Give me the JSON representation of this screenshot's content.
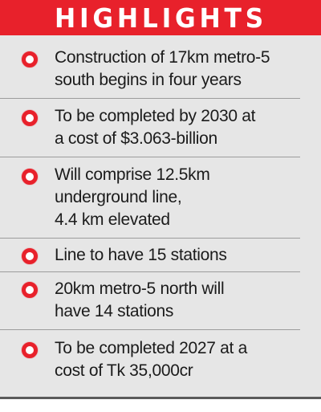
{
  "header": {
    "title": "HIGHLIGHTS"
  },
  "colors": {
    "accent": "#e8212b",
    "background": "#e6e6e6",
    "text": "#1b1b1b",
    "divider": "#9c9c9c"
  },
  "highlights": {
    "items": [
      {
        "icon": "bullet-ring-icon",
        "text": "Construction of 17km metro-5\nsouth begins in four years"
      },
      {
        "icon": "bullet-ring-icon",
        "text": "To be completed by 2030 at\na cost of $3.063-billion"
      },
      {
        "icon": "bullet-ring-icon",
        "text": "Will comprise 12.5km\nunderground line,\n4.4 km elevated"
      },
      {
        "icon": "bullet-ring-icon",
        "text": "Line to have 15 stations"
      },
      {
        "icon": "bullet-ring-icon",
        "text": "20km metro-5 north will\nhave 14 stations"
      },
      {
        "icon": "bullet-ring-icon",
        "text": "To be completed 2027 at a\ncost of Tk 35,000cr"
      }
    ]
  }
}
